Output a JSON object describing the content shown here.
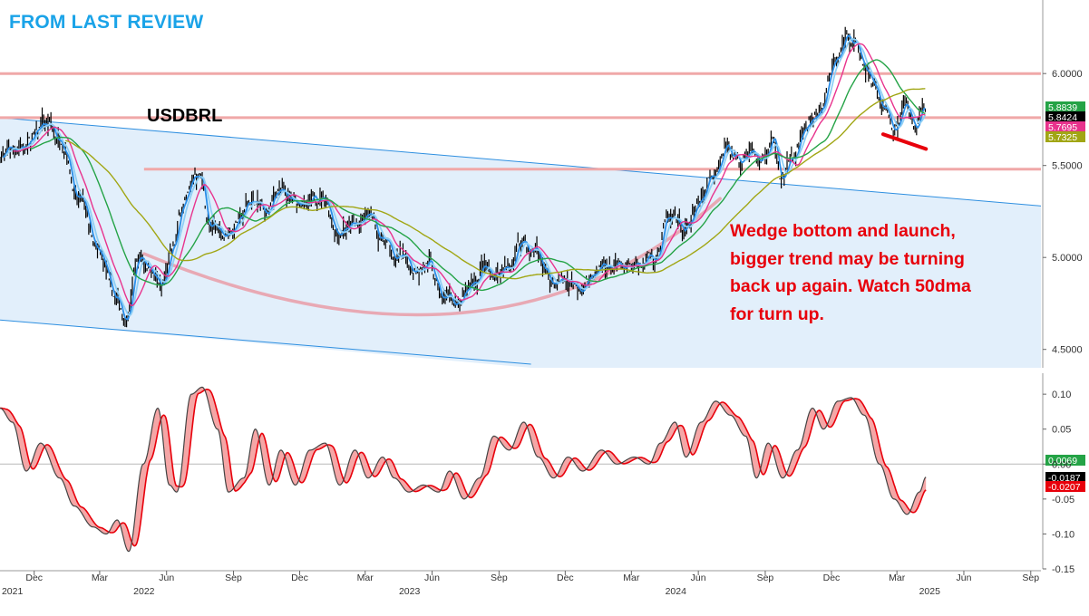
{
  "header": {
    "title": "FROM LAST REVIEW"
  },
  "annotation": {
    "lines": [
      "Wedge bottom and launch,",
      "bigger trend may be turning",
      "back up again. Watch 50dma",
      "for turn up."
    ]
  },
  "chart_data": [
    {
      "type": "line",
      "title": "USDBRL",
      "subtype": "daily price bars with moving averages",
      "x_range": [
        "2021-10-15",
        "2025-09-15"
      ],
      "ylim": [
        4.4,
        6.4
      ],
      "y_ticks": [
        "4.5000",
        "5.0000",
        "5.5000",
        "6.0000"
      ],
      "x_axis": {
        "month_ticks": [
          "Dec",
          "Mar",
          "Jun",
          "Sep",
          "Dec",
          "Mar",
          "Jun",
          "Sep",
          "Dec",
          "Mar",
          "Jun",
          "Sep",
          "Dec",
          "Mar",
          "Jun",
          "Sep"
        ],
        "month_dates": [
          "2021-12-01",
          "2022-03-01",
          "2022-06-01",
          "2022-09-01",
          "2022-12-01",
          "2023-03-01",
          "2023-06-01",
          "2023-09-01",
          "2023-12-01",
          "2024-03-01",
          "2024-06-01",
          "2024-09-01",
          "2024-12-01",
          "2025-03-01",
          "2025-06-01",
          "2025-09-01"
        ],
        "year_labels": [
          "2021",
          "2022",
          "2023",
          "2024",
          "2025"
        ],
        "year_dates": [
          "2021-11-01",
          "2022-05-01",
          "2023-05-01",
          "2024-05-01",
          "2025-04-15"
        ]
      },
      "price_path": [
        [
          "2021-10-15",
          5.55
        ],
        [
          "2021-11-10",
          5.6
        ],
        [
          "2021-12-20",
          5.72
        ],
        [
          "2022-01-10",
          5.62
        ],
        [
          "2022-01-31",
          5.3
        ],
        [
          "2022-02-28",
          5.02
        ],
        [
          "2022-03-20",
          4.8
        ],
        [
          "2022-04-05",
          4.7
        ],
        [
          "2022-04-25",
          5.0
        ],
        [
          "2022-05-10",
          4.95
        ],
        [
          "2022-05-25",
          4.84
        ],
        [
          "2022-06-10",
          5.05
        ],
        [
          "2022-06-25",
          5.3
        ],
        [
          "2022-07-15",
          5.45
        ],
        [
          "2022-08-01",
          5.15
        ],
        [
          "2022-08-20",
          5.12
        ],
        [
          "2022-09-10",
          5.22
        ],
        [
          "2022-09-25",
          5.3
        ],
        [
          "2022-10-15",
          5.25
        ],
        [
          "2022-11-05",
          5.38
        ],
        [
          "2022-11-20",
          5.3
        ],
        [
          "2022-12-05",
          5.28
        ],
        [
          "2023-01-02",
          5.32
        ],
        [
          "2023-01-20",
          5.15
        ],
        [
          "2023-02-15",
          5.18
        ],
        [
          "2023-03-05",
          5.22
        ],
        [
          "2023-03-25",
          5.1
        ],
        [
          "2023-04-15",
          4.98
        ],
        [
          "2023-05-05",
          4.95
        ],
        [
          "2023-05-25",
          4.96
        ],
        [
          "2023-06-15",
          4.8
        ],
        [
          "2023-07-10",
          4.75
        ],
        [
          "2023-07-28",
          4.85
        ],
        [
          "2023-08-10",
          4.95
        ],
        [
          "2023-08-25",
          4.9
        ],
        [
          "2023-09-15",
          4.93
        ],
        [
          "2023-10-01",
          5.1
        ],
        [
          "2023-10-20",
          5.02
        ],
        [
          "2023-11-10",
          4.88
        ],
        [
          "2023-12-01",
          4.87
        ],
        [
          "2023-12-20",
          4.85
        ],
        [
          "2024-01-15",
          4.92
        ],
        [
          "2024-02-10",
          4.96
        ],
        [
          "2024-03-10",
          4.97
        ],
        [
          "2024-04-01",
          5.0
        ],
        [
          "2024-04-20",
          5.2
        ],
        [
          "2024-05-10",
          5.15
        ],
        [
          "2024-06-01",
          5.25
        ],
        [
          "2024-06-20",
          5.45
        ],
        [
          "2024-07-10",
          5.6
        ],
        [
          "2024-07-28",
          5.55
        ],
        [
          "2024-08-10",
          5.6
        ],
        [
          "2024-08-25",
          5.5
        ],
        [
          "2024-09-10",
          5.6
        ],
        [
          "2024-09-25",
          5.45
        ],
        [
          "2024-10-10",
          5.55
        ],
        [
          "2024-10-25",
          5.7
        ],
        [
          "2024-11-15",
          5.8
        ],
        [
          "2024-12-05",
          6.05
        ],
        [
          "2024-12-20",
          6.2
        ],
        [
          "2025-01-02",
          6.18
        ],
        [
          "2025-01-20",
          6.0
        ],
        [
          "2025-02-10",
          5.8
        ],
        [
          "2025-02-25",
          5.72
        ],
        [
          "2025-03-10",
          5.84
        ],
        [
          "2025-03-25",
          5.7
        ],
        [
          "2025-04-05",
          5.8
        ],
        [
          "2025-04-10",
          5.84
        ]
      ],
      "moving_averages": {
        "colors": [
          "#2a8ee8",
          "#8fcff5",
          "#e8338d",
          "#24a346",
          "#a1a614"
        ]
      },
      "horizontal_levels": [
        6.0,
        5.76,
        5.48
      ],
      "level_color": "#f0a8a8",
      "wedge_channel": {
        "upper": [
          [
            "2021-10-15",
            5.76
          ],
          [
            "2025-09-15",
            5.28
          ]
        ],
        "lower": [
          [
            "2021-10-15",
            4.66
          ],
          [
            "2023-10-15",
            4.42
          ]
        ],
        "fill": "#e2effb",
        "line_color": "#2e8fe0"
      },
      "rounded_bottom_arc": {
        "from": [
          "2022-05-01",
          5.02
        ],
        "low": [
          "2023-07-15",
          4.7
        ],
        "to": [
          "2024-07-01",
          5.32
        ],
        "color": "#e8a9b4"
      },
      "wedge_line": {
        "from": [
          "2025-02-10",
          5.67
        ],
        "to": [
          "2025-04-10",
          5.59
        ],
        "color": "#e8000b"
      },
      "last_value_labels": [
        {
          "text": "5.8839",
          "bg": "#24a346",
          "fg": "#ffffff"
        },
        {
          "text": "5.8424",
          "bg": "#000000",
          "fg": "#ffffff"
        },
        {
          "text": "5.7695",
          "bg": "#e8338d",
          "fg": "#ffffff"
        },
        {
          "text": "5.7325",
          "bg": "#a1a614",
          "fg": "#ffffff"
        }
      ]
    },
    {
      "type": "line",
      "subtype": "oscillator with signal line",
      "ylim": [
        -0.15,
        0.13
      ],
      "y_ticks": [
        "-0.15",
        "-0.10",
        "-0.05",
        "0.00",
        "0.05",
        "0.10"
      ],
      "zero_line": 0.0,
      "oscillator_path": [
        [
          "2021-10-15",
          0.08
        ],
        [
          "2021-11-01",
          0.06
        ],
        [
          "2021-11-20",
          -0.01
        ],
        [
          "2021-12-10",
          0.03
        ],
        [
          "2022-01-05",
          -0.02
        ],
        [
          "2022-01-25",
          -0.06
        ],
        [
          "2022-02-20",
          -0.09
        ],
        [
          "2022-03-10",
          -0.1
        ],
        [
          "2022-03-25",
          -0.08
        ],
        [
          "2022-04-10",
          -0.125
        ],
        [
          "2022-04-30",
          0.0
        ],
        [
          "2022-05-20",
          0.08
        ],
        [
          "2022-06-05",
          -0.03
        ],
        [
          "2022-06-15",
          -0.04
        ],
        [
          "2022-07-05",
          0.1
        ],
        [
          "2022-07-20",
          0.11
        ],
        [
          "2022-08-10",
          0.05
        ],
        [
          "2022-08-25",
          -0.04
        ],
        [
          "2022-09-15",
          -0.02
        ],
        [
          "2022-10-01",
          0.05
        ],
        [
          "2022-10-20",
          -0.03
        ],
        [
          "2022-11-05",
          0.02
        ],
        [
          "2022-11-25",
          -0.03
        ],
        [
          "2022-12-15",
          0.02
        ],
        [
          "2023-01-05",
          0.03
        ],
        [
          "2023-01-25",
          -0.03
        ],
        [
          "2023-02-15",
          0.02
        ],
        [
          "2023-03-05",
          -0.02
        ],
        [
          "2023-03-25",
          0.01
        ],
        [
          "2023-04-10",
          -0.02
        ],
        [
          "2023-04-30",
          -0.04
        ],
        [
          "2023-05-20",
          -0.03
        ],
        [
          "2023-06-10",
          -0.04
        ],
        [
          "2023-06-25",
          -0.01
        ],
        [
          "2023-07-15",
          -0.05
        ],
        [
          "2023-08-05",
          -0.02
        ],
        [
          "2023-08-25",
          0.04
        ],
        [
          "2023-09-15",
          0.02
        ],
        [
          "2023-10-05",
          0.06
        ],
        [
          "2023-10-25",
          0.01
        ],
        [
          "2023-11-15",
          -0.02
        ],
        [
          "2023-12-05",
          0.01
        ],
        [
          "2023-12-25",
          -0.01
        ],
        [
          "2024-01-20",
          0.02
        ],
        [
          "2024-02-10",
          0.0
        ],
        [
          "2024-03-05",
          0.01
        ],
        [
          "2024-03-25",
          0.0
        ],
        [
          "2024-04-10",
          0.03
        ],
        [
          "2024-04-30",
          0.06
        ],
        [
          "2024-05-15",
          0.01
        ],
        [
          "2024-06-05",
          0.06
        ],
        [
          "2024-06-25",
          0.09
        ],
        [
          "2024-07-15",
          0.07
        ],
        [
          "2024-08-05",
          0.04
        ],
        [
          "2024-08-20",
          -0.02
        ],
        [
          "2024-09-05",
          0.03
        ],
        [
          "2024-09-25",
          -0.02
        ],
        [
          "2024-10-15",
          0.02
        ],
        [
          "2024-11-05",
          0.08
        ],
        [
          "2024-11-20",
          0.05
        ],
        [
          "2024-12-10",
          0.09
        ],
        [
          "2024-12-28",
          0.095
        ],
        [
          "2025-01-15",
          0.07
        ],
        [
          "2025-02-05",
          0.0
        ],
        [
          "2025-02-25",
          -0.05
        ],
        [
          "2025-03-15",
          -0.072
        ],
        [
          "2025-04-01",
          -0.04
        ],
        [
          "2025-04-10",
          -0.0187
        ]
      ],
      "signal_lag_days": 10,
      "oscillator_color": "#444444",
      "signal_color": "#e8000b",
      "fill_color": "#f5a6a6",
      "last_value_labels": [
        {
          "text": "0.0069",
          "bg": "#24a346",
          "fg": "#ffffff"
        },
        {
          "text": "-0.0187",
          "bg": "#000000",
          "fg": "#ffffff"
        },
        {
          "text": "-0.0207",
          "bg": "#e8000b",
          "fg": "#ffffff"
        }
      ]
    }
  ]
}
